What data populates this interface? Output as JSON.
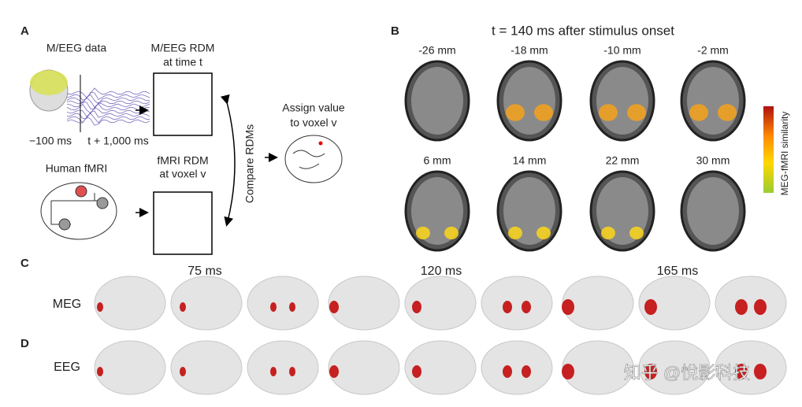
{
  "panel_a": {
    "label": "A",
    "meeg_title": "M/EEG data",
    "time_start": "−100 ms",
    "time_end": "t + 1,000 ms",
    "meeg_rdm": [
      "M/EEG RDM",
      "at time t"
    ],
    "fmri_title": "Human fMRI",
    "fmri_rdm": [
      "fMRI RDM",
      "at voxel v"
    ],
    "compare": "Compare RDMs",
    "assign": [
      "Assign value",
      "to voxel v"
    ]
  },
  "panel_b": {
    "label": "B",
    "title": "t = 140 ms after stimulus onset",
    "slices": [
      "-26 mm",
      "-18 mm",
      "-10 mm",
      "-2 mm",
      "6 mm",
      "14 mm",
      "22 mm",
      "30 mm"
    ],
    "colorbar_label": "MEG-fMRI similarity"
  },
  "panel_c": {
    "label": "C",
    "row_label": "MEG",
    "times": [
      "75 ms",
      "120 ms",
      "165 ms"
    ]
  },
  "panel_d": {
    "label": "D",
    "row_label": "EEG"
  },
  "watermark": "知乎 @悅影科技"
}
